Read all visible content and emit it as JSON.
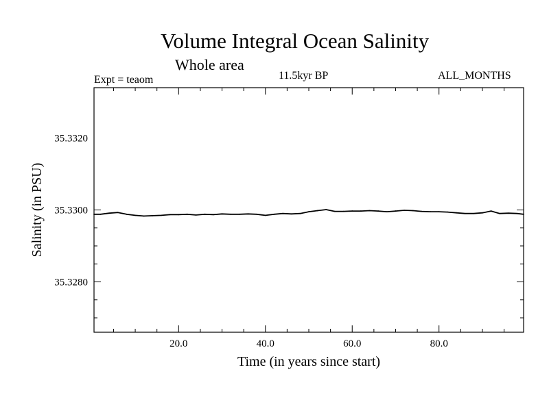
{
  "header": {
    "title": "Volume Integral Ocean Salinity",
    "subtitle": "Whole area",
    "experiment": "Expt = teaom",
    "period": "11.5kyr BP",
    "months": "ALL_MONTHS"
  },
  "chart_data": {
    "type": "line",
    "title": "Volume Integral Ocean Salinity",
    "xlabel": "Time (in years since start)",
    "ylabel": "Salinity (in PSU)",
    "xlim": [
      0.5,
      99.5
    ],
    "ylim": [
      35.3266,
      35.3334
    ],
    "xticks": [
      20,
      40,
      60,
      80
    ],
    "xtick_labels": [
      "20.0",
      "40.0",
      "60.0",
      "80.0"
    ],
    "yticks": [
      35.328,
      35.33,
      35.332
    ],
    "ytick_labels": [
      "35.3280",
      "35.3300",
      "35.3320"
    ],
    "grid": false,
    "series": [
      {
        "name": "Salinity",
        "x": [
          0.5,
          2,
          4,
          6,
          8,
          10,
          12,
          14,
          16,
          18,
          20,
          22,
          24,
          26,
          28,
          30,
          32,
          34,
          36,
          38,
          40,
          42,
          44,
          46,
          48,
          50,
          52,
          54,
          56,
          58,
          60,
          62,
          64,
          66,
          68,
          70,
          72,
          74,
          76,
          78,
          80,
          82,
          84,
          86,
          88,
          90,
          92,
          94,
          96,
          98,
          99.5
        ],
        "values": [
          35.32988,
          35.32988,
          35.32991,
          35.32993,
          35.32988,
          35.32985,
          35.32983,
          35.32984,
          35.32985,
          35.32987,
          35.32987,
          35.32988,
          35.32986,
          35.32988,
          35.32987,
          35.32989,
          35.32988,
          35.32988,
          35.32989,
          35.32988,
          35.32985,
          35.32988,
          35.3299,
          35.32989,
          35.3299,
          35.32995,
          35.32998,
          35.33001,
          35.32996,
          35.32996,
          35.32997,
          35.32997,
          35.32998,
          35.32997,
          35.32995,
          35.32997,
          35.32999,
          35.32998,
          35.32996,
          35.32995,
          35.32995,
          35.32994,
          35.32992,
          35.3299,
          35.3299,
          35.32992,
          35.32997,
          35.3299,
          35.32991,
          35.3299,
          35.32988
        ]
      }
    ]
  }
}
